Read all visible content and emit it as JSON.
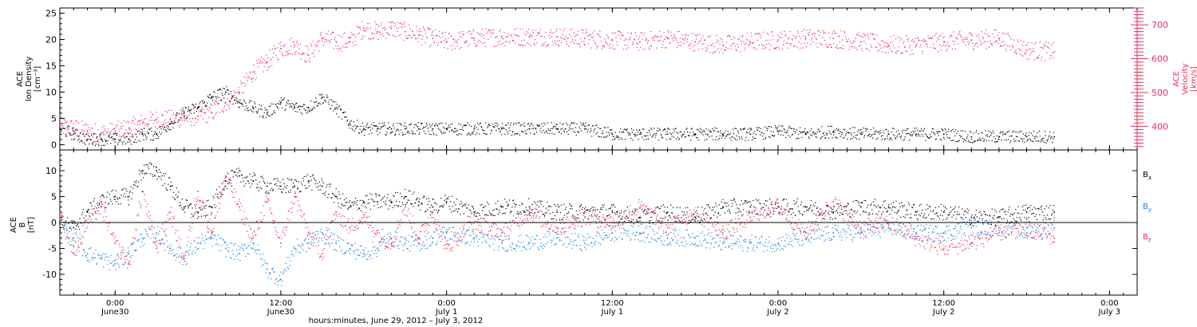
{
  "figure": {
    "x_axis_title": "hours:minutes, June 29, 2012 – July  3, 2012",
    "x_ticks": [
      {
        "value": 5.0,
        "time": "0:00",
        "date": "June30"
      },
      {
        "value": 17.0,
        "time": "12:00",
        "date": "June30"
      },
      {
        "value": 29.0,
        "time": "0:00",
        "date": "July 1"
      },
      {
        "value": 41.0,
        "time": "12:00",
        "date": "July 1"
      },
      {
        "value": 53.0,
        "time": "0:00",
        "date": "July 2"
      },
      {
        "value": 65.0,
        "time": "12:00",
        "date": "July 2"
      },
      {
        "value": 77.0,
        "time": "0:00",
        "date": "July 3"
      }
    ],
    "x_range": [
      1.0,
      79.0
    ],
    "colors": {
      "black": "#000000",
      "pink": "#e8305e",
      "blue": "#1c7ee0"
    }
  },
  "chart_data": [
    {
      "type": "scatter",
      "panel": "top",
      "left_axis_label": [
        "ACE",
        "Ion Density",
        "[cm⁻³]"
      ],
      "right_axis_label": [
        "ACE",
        "Velocity",
        "[km/s]"
      ],
      "left_ylim": [
        -1,
        26
      ],
      "left_ticks": [
        0,
        5,
        10,
        15,
        20,
        25
      ],
      "right_ylim": [
        330,
        750
      ],
      "right_ticks": [
        400,
        500,
        600,
        700
      ],
      "series": [
        {
          "axis": "left",
          "color": "#000000",
          "x": [
            1.0,
            2.0,
            3.0,
            4.0,
            5.0,
            6.0,
            7.0,
            8.0,
            9.0,
            10.0,
            11.0,
            12.0,
            13.0,
            14.0,
            15.0,
            16.0,
            17.0,
            18.0,
            19.0,
            20.0,
            21.0,
            22.0,
            23.0,
            24.0,
            25.0,
            26.0,
            27.0,
            28.0,
            29.0,
            31.0,
            33.0,
            35.0,
            37.0,
            39.0,
            41.0,
            43.0,
            45.0,
            47.0,
            49.0,
            51.0,
            53.0,
            55.0,
            57.0,
            59.0,
            61.0,
            63.0,
            65.0,
            67.0,
            69.0,
            71.0,
            73.0
          ],
          "y": [
            3,
            2,
            1,
            1,
            1,
            1,
            2,
            2,
            4,
            6,
            7,
            9,
            10,
            8,
            7,
            6,
            8,
            7,
            7,
            9,
            7,
            4,
            3,
            3,
            3,
            3,
            3,
            3,
            3,
            3,
            3,
            3,
            3,
            3,
            2,
            2,
            2,
            2,
            2,
            2,
            2.5,
            2,
            2.5,
            2,
            2,
            2,
            2,
            1.5,
            1.5,
            1.5,
            1.5
          ]
        },
        {
          "axis": "right",
          "color": "#e8305e",
          "x": [
            1.0,
            2.0,
            3.0,
            4.0,
            5.0,
            6.0,
            7.0,
            8.0,
            9.0,
            10.0,
            11.0,
            12.0,
            13.0,
            14.0,
            15.0,
            16.0,
            17.0,
            18.0,
            19.0,
            20.0,
            21.0,
            22.0,
            23.0,
            24.0,
            25.0,
            26.0,
            27.0,
            28.0,
            29.0,
            31.0,
            33.0,
            35.0,
            37.0,
            39.0,
            41.0,
            43.0,
            45.0,
            47.0,
            49.0,
            51.0,
            53.0,
            55.0,
            57.0,
            59.0,
            61.0,
            63.0,
            65.0,
            67.0,
            69.0,
            71.0,
            73.0
          ],
          "y": [
            400,
            395,
            385,
            380,
            385,
            395,
            410,
            420,
            420,
            425,
            430,
            440,
            470,
            500,
            560,
            590,
            630,
            640,
            610,
            660,
            650,
            650,
            690,
            680,
            690,
            680,
            670,
            660,
            650,
            660,
            665,
            665,
            665,
            660,
            655,
            650,
            660,
            650,
            640,
            650,
            655,
            660,
            660,
            650,
            640,
            640,
            650,
            655,
            660,
            625,
            620
          ]
        }
      ]
    },
    {
      "type": "scatter",
      "panel": "bottom",
      "left_axis_label": [
        "ACE",
        "B",
        "[nT]"
      ],
      "ylim": [
        -14,
        14
      ],
      "yticks": [
        -10,
        -5,
        0,
        5,
        10
      ],
      "series": [
        {
          "name": "Bx",
          "color": "#000000",
          "x": [
            1.0,
            2.0,
            3.0,
            4.0,
            5.0,
            6.0,
            7.0,
            8.0,
            9.0,
            10.0,
            11.0,
            12.0,
            13.0,
            14.0,
            15.0,
            16.0,
            17.0,
            18.0,
            19.0,
            20.0,
            21.0,
            22.0,
            23.0,
            24.0,
            25.0,
            26.0,
            27.0,
            28.0,
            29.0,
            31.0,
            33.0,
            35.0,
            37.0,
            39.0,
            41.0,
            43.0,
            45.0,
            47.0,
            49.0,
            51.0,
            53.0,
            55.0,
            57.0,
            59.0,
            61.0,
            63.0,
            65.0,
            67.0,
            69.0,
            71.0,
            73.0
          ],
          "y": [
            0,
            -1,
            2,
            4,
            5,
            5,
            10,
            10,
            7,
            3,
            2,
            3,
            8,
            9,
            8,
            7,
            7,
            7,
            8,
            7,
            5,
            3,
            4,
            4,
            4,
            5,
            4,
            3,
            4,
            2,
            3,
            3,
            2,
            2,
            2,
            1,
            2,
            1,
            3,
            3,
            3,
            3,
            2,
            3,
            3,
            2,
            2,
            1,
            1,
            2,
            2
          ]
        },
        {
          "name": "By",
          "color": "#1c7ee0",
          "x": [
            1.0,
            2.0,
            3.0,
            4.0,
            5.0,
            6.0,
            7.0,
            8.0,
            9.0,
            10.0,
            11.0,
            12.0,
            13.0,
            14.0,
            15.0,
            16.0,
            17.0,
            18.0,
            19.0,
            20.0,
            21.0,
            22.0,
            23.0,
            24.0,
            25.0,
            26.0,
            27.0,
            28.0,
            29.0,
            31.0,
            33.0,
            35.0,
            37.0,
            39.0,
            41.0,
            43.0,
            45.0,
            47.0,
            49.0,
            51.0,
            53.0,
            55.0,
            57.0,
            59.0,
            61.0,
            63.0,
            65.0,
            67.0,
            69.0,
            71.0,
            73.0
          ],
          "y": [
            1,
            -3,
            -6,
            -7,
            -8,
            -6,
            -3,
            -2,
            -5,
            -7,
            -4,
            -3,
            -5,
            -6,
            -4,
            -9,
            -11,
            -5,
            -4,
            -2,
            -4,
            -5,
            -6,
            -5,
            -3,
            -4,
            -4,
            -3,
            -2,
            -3,
            -4,
            -4,
            -3,
            -4,
            -2,
            -2,
            -3,
            -3,
            -4,
            -4,
            -4,
            -3,
            -2,
            -2,
            -1,
            -2,
            -2,
            -1,
            -1,
            -2,
            -1
          ]
        },
        {
          "name": "Bz",
          "color": "#e8305e",
          "x": [
            1.0,
            2.0,
            3.0,
            4.0,
            5.0,
            6.0,
            7.0,
            8.0,
            9.0,
            10.0,
            11.0,
            12.0,
            13.0,
            14.0,
            15.0,
            16.0,
            17.0,
            18.0,
            19.0,
            20.0,
            21.0,
            22.0,
            23.0,
            24.0,
            25.0,
            26.0,
            27.0,
            28.0,
            29.0,
            31.0,
            33.0,
            35.0,
            37.0,
            39.0,
            41.0,
            43.0,
            45.0,
            47.0,
            49.0,
            51.0,
            53.0,
            55.0,
            57.0,
            59.0,
            61.0,
            63.0,
            65.0,
            67.0,
            69.0,
            71.0,
            73.0
          ],
          "y": [
            2,
            -6,
            0,
            3,
            -4,
            -8,
            6,
            -5,
            2,
            -7,
            6,
            -2,
            9,
            3,
            -3,
            4,
            -4,
            5,
            -2,
            -6,
            2,
            -1,
            1,
            -2,
            -4,
            3,
            -3,
            2,
            -5,
            0,
            -2,
            2,
            -1,
            1,
            0,
            3,
            -1,
            2,
            -2,
            1,
            3,
            -2,
            4,
            -1,
            0,
            -3,
            -5,
            -4,
            -2,
            -1,
            -3
          ]
        }
      ],
      "legend": [
        {
          "label": "B",
          "sub": "x",
          "color": "#000000"
        },
        {
          "label": "B",
          "sub": "y",
          "color": "#1c7ee0"
        },
        {
          "label": "B",
          "sub": "z",
          "color": "#e8305e"
        }
      ]
    }
  ]
}
